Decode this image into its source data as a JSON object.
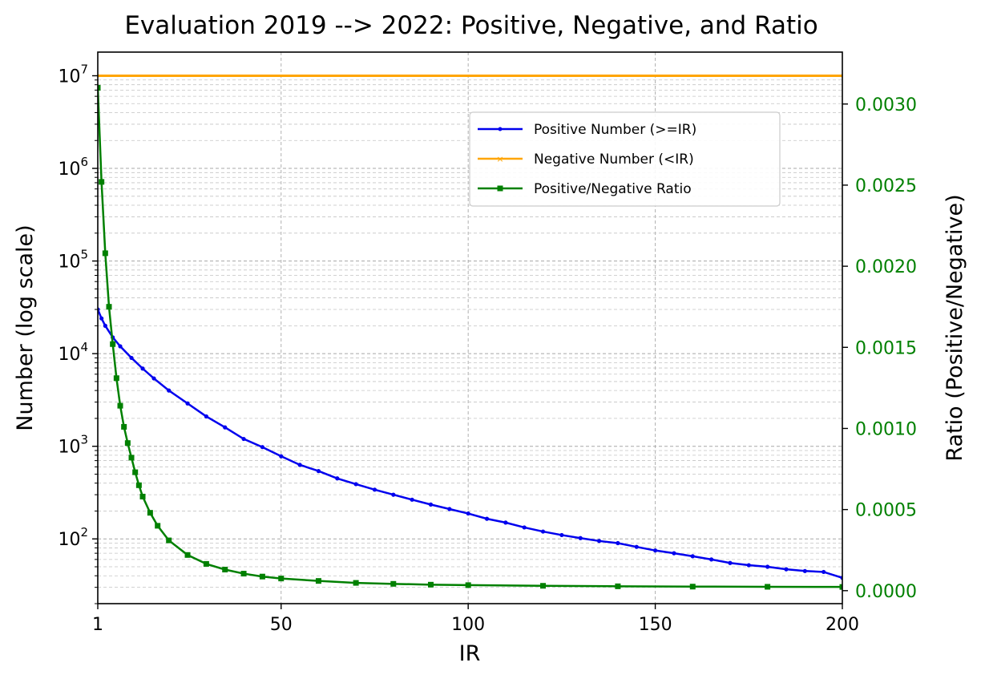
{
  "chart_data": {
    "type": "line",
    "title": "Evaluation 2019 --> 2022: Positive, Negative, and Ratio",
    "xlabel": "IR",
    "ylabel": "Number (log scale)",
    "y2label": "Ratio (Positive/Negative)",
    "xlim": [
      1,
      200
    ],
    "ylim": [
      20,
      18000000
    ],
    "y2lim": [
      -8e-05,
      0.00332
    ],
    "yscale": "log",
    "grid": true,
    "legend_position": "upper-right",
    "xticks": [
      1,
      50,
      100,
      150,
      200
    ],
    "yticks": [
      {
        "base": "10",
        "exp": "2",
        "value": 100
      },
      {
        "base": "10",
        "exp": "3",
        "value": 1000
      },
      {
        "base": "10",
        "exp": "4",
        "value": 10000
      },
      {
        "base": "10",
        "exp": "5",
        "value": 100000
      },
      {
        "base": "10",
        "exp": "6",
        "value": 1000000
      },
      {
        "base": "10",
        "exp": "7",
        "value": 10000000
      }
    ],
    "y2ticks": [
      "0.0000",
      "0.0005",
      "0.0010",
      "0.0015",
      "0.0020",
      "0.0025",
      "0.0030"
    ],
    "colors": {
      "positive": "#0000ee",
      "negative": "#ffa500",
      "ratio": "#008000"
    },
    "series": [
      {
        "name": "Positive Number (>=IR)",
        "axis": "left",
        "marker": "dot",
        "x": [
          1,
          2,
          3,
          5,
          7,
          10,
          13,
          16,
          20,
          25,
          30,
          35,
          40,
          45,
          50,
          55,
          60,
          65,
          70,
          75,
          80,
          85,
          90,
          95,
          100,
          105,
          110,
          115,
          120,
          125,
          130,
          135,
          140,
          145,
          150,
          155,
          160,
          165,
          170,
          175,
          180,
          185,
          190,
          195,
          200
        ],
        "values": [
          30000,
          24000,
          20000,
          15000,
          12000,
          9000,
          6900,
          5400,
          4000,
          2900,
          2100,
          1600,
          1200,
          980,
          780,
          630,
          540,
          450,
          390,
          340,
          300,
          265,
          235,
          210,
          188,
          165,
          150,
          133,
          120,
          110,
          102,
          95,
          90,
          82,
          75,
          70,
          65,
          60,
          55,
          52,
          50,
          47,
          45,
          44,
          38
        ]
      },
      {
        "name": "Negative Number (<IR)",
        "axis": "left",
        "marker": "x",
        "x": [
          1,
          200
        ],
        "values": [
          10000000,
          10000000
        ]
      },
      {
        "name": "Positive/Negative Ratio",
        "axis": "right",
        "marker": "square",
        "x": [
          1,
          2,
          3,
          4,
          5,
          6,
          7,
          8,
          9,
          10,
          11,
          12,
          13,
          15,
          17,
          20,
          25,
          30,
          35,
          40,
          45,
          50,
          60,
          70,
          80,
          90,
          100,
          120,
          140,
          160,
          180,
          200
        ],
        "values": [
          0.0031,
          0.00252,
          0.00208,
          0.00175,
          0.00152,
          0.00131,
          0.00114,
          0.00101,
          0.00091,
          0.00082,
          0.00073,
          0.00065,
          0.00058,
          0.00048,
          0.0004,
          0.00031,
          0.00022,
          0.000165,
          0.00013,
          0.000105,
          8.7e-05,
          7.5e-05,
          6e-05,
          4.8e-05,
          4.2e-05,
          3.7e-05,
          3.4e-05,
          3e-05,
          2.7e-05,
          2.5e-05,
          2.4e-05,
          2.3e-05
        ]
      }
    ]
  }
}
